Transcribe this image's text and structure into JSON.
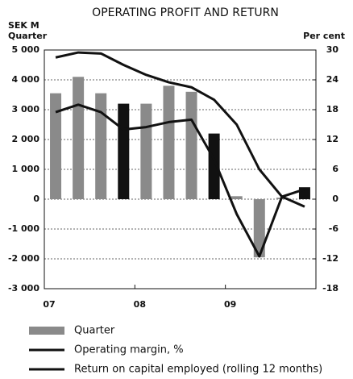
{
  "chart_data": {
    "type": "bar",
    "title": "OPERATING PROFIT AND RETURN",
    "y_label": [
      "SEK M",
      "Quarter"
    ],
    "y2_label": "Per cent",
    "categories": [
      "07",
      null,
      null,
      null,
      "08",
      null,
      null,
      null,
      "09",
      null,
      null,
      null
    ],
    "series": [
      {
        "name": "Quarter",
        "type": "bar",
        "color": "#8a8a8a",
        "colors": [
          "#8a8a8a",
          "#8a8a8a",
          "#8a8a8a",
          "#111111",
          "#8a8a8a",
          "#8a8a8a",
          "#8a8a8a",
          "#111111",
          "#8a8a8a",
          "#8a8a8a",
          "#8a8a8a",
          "#111111"
        ],
        "values": [
          3550,
          4100,
          3550,
          3200,
          3200,
          3800,
          3600,
          2200,
          100,
          -1950,
          50,
          400
        ]
      },
      {
        "name": "Operating margin, %",
        "type": "line",
        "axis": "y2",
        "color": "#111111",
        "values": [
          17.5,
          19,
          17.5,
          14,
          14.5,
          15.5,
          16,
          8,
          -3,
          -11.5,
          0.5,
          2
        ]
      },
      {
        "name": "Return on capital employed (rolling 12 months)",
        "type": "line",
        "axis": "y2",
        "color": "#111111",
        "values": [
          28.5,
          29.5,
          29.3,
          27,
          25,
          23.5,
          22.5,
          20,
          15,
          6,
          0.5,
          -1.5
        ]
      }
    ],
    "ylim": [
      -3000,
      5000
    ],
    "yticks": [
      {
        "value": -3000,
        "label": "-3 000"
      },
      {
        "value": -2000,
        "label": "-2 000"
      },
      {
        "value": -1000,
        "label": "-1 000"
      },
      0,
      {
        "value": 1000,
        "label": "1 000"
      },
      {
        "value": 2000,
        "label": "2 000"
      },
      {
        "value": 3000,
        "label": "3 000"
      },
      {
        "value": 4000,
        "label": "4 000"
      },
      {
        "value": 5000,
        "label": "5 000"
      }
    ],
    "y2lim": [
      -18,
      30
    ],
    "y2ticks": [
      -18,
      -12,
      -6,
      0,
      6,
      12,
      18,
      24,
      30
    ],
    "grid": true
  }
}
